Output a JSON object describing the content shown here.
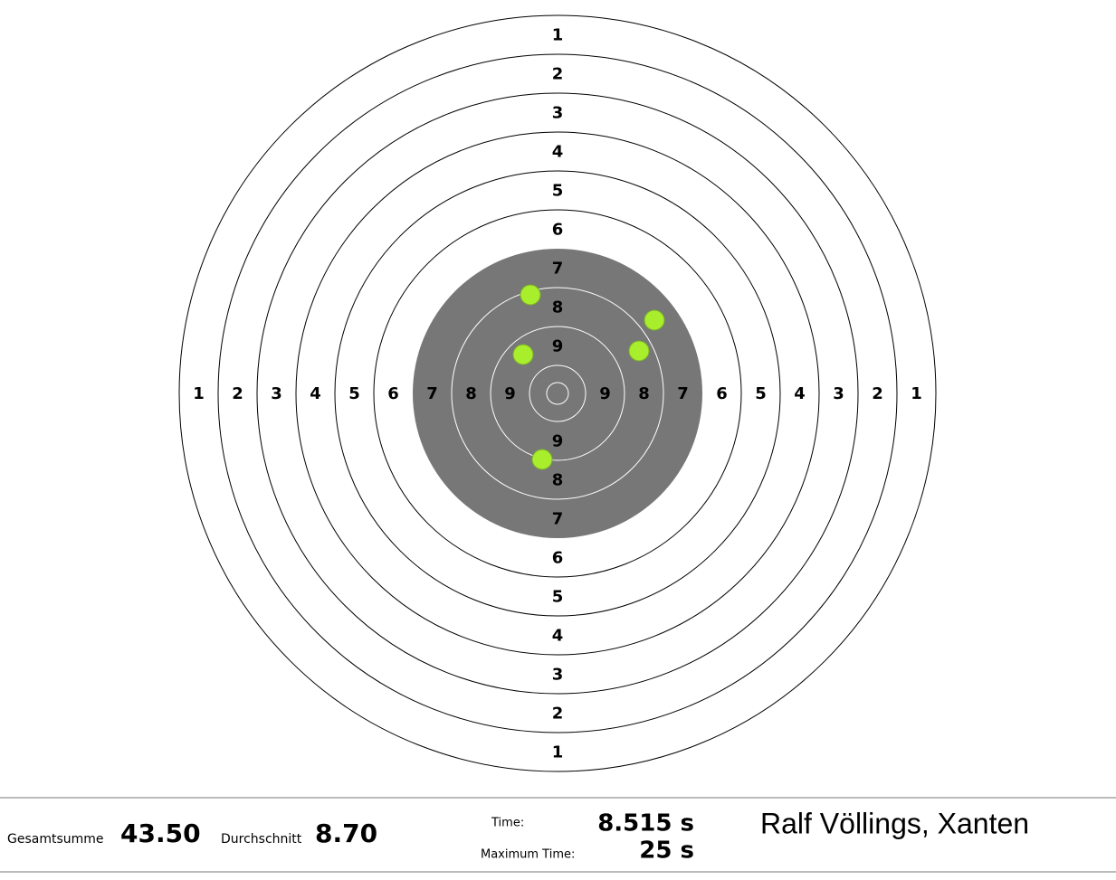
{
  "target": {
    "rings": [
      {
        "label": "1"
      },
      {
        "label": "2"
      },
      {
        "label": "3"
      },
      {
        "label": "4"
      },
      {
        "label": "5"
      },
      {
        "label": "6"
      },
      {
        "label": "7"
      },
      {
        "label": "8"
      },
      {
        "label": "9"
      }
    ]
  },
  "footer": {
    "total_label": "Gesamtsumme",
    "total_value": "43.50",
    "average_label": "Durchschnitt",
    "average_value": "8.70",
    "time_label": "Time:",
    "time_value": "8.515 s",
    "max_time_label": "Maximum Time:",
    "max_time_value": "25 s",
    "shooter": "Ralf Völlings, Xanten"
  }
}
